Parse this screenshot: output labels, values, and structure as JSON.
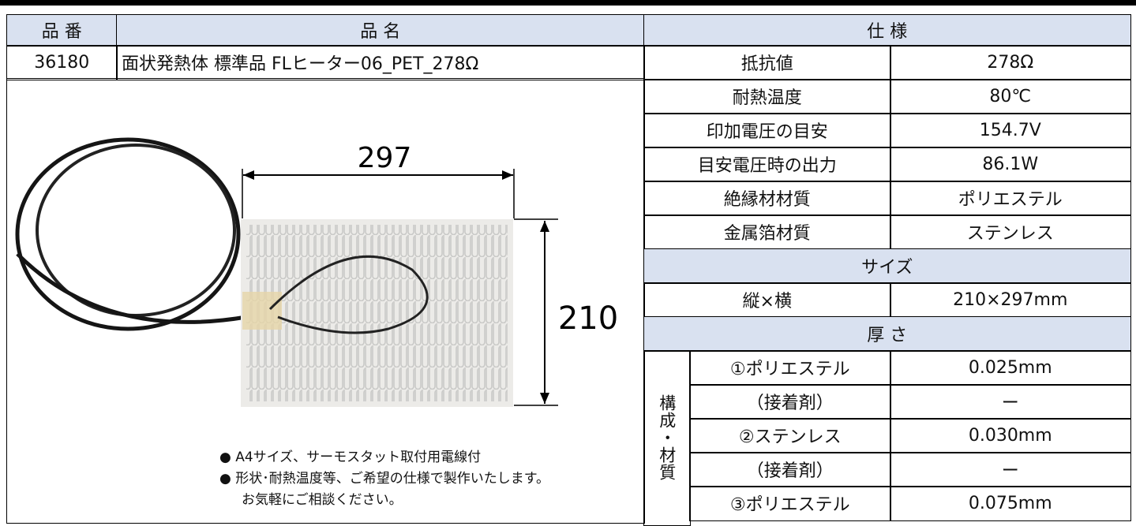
{
  "header": {
    "part_no": "品 番",
    "name": "品 名",
    "spec": "仕 様"
  },
  "product": {
    "part_no": "36180",
    "name": "面状発熱体 標準品 FLヒーター06_PET_278Ω"
  },
  "specs": [
    {
      "label": "抵抗値",
      "value": "278Ω"
    },
    {
      "label": "耐熱温度",
      "value": "80℃"
    },
    {
      "label": "印加電圧の目安",
      "value": "154.7V"
    },
    {
      "label": "目安電圧時の出力",
      "value": "86.1W"
    },
    {
      "label": "絶縁材材質",
      "value": "ポリエステル"
    },
    {
      "label": "金属箔材質",
      "value": "ステンレス"
    }
  ],
  "size_header": "サイズ",
  "size": {
    "label": "縦×横",
    "value": "210×297mm"
  },
  "thickness_header": "厚 さ",
  "structure_label": "構成・材質",
  "layers": [
    {
      "label": "①ポリエステル",
      "value": "0.025mm"
    },
    {
      "label": "（接着剤）",
      "value": "ー"
    },
    {
      "label": "②ステンレス",
      "value": "0.030mm"
    },
    {
      "label": "（接着剤）",
      "value": "ー"
    },
    {
      "label": "③ポリエステル",
      "value": "0.075mm"
    }
  ],
  "figure": {
    "width": "297",
    "height": "210",
    "notes": [
      "● A4サイズ、サーモスタット取付用電線付",
      "● 形状･耐熱温度等、ご希望の仕様で製作いたします。",
      "お気軽にご相談ください。"
    ]
  }
}
